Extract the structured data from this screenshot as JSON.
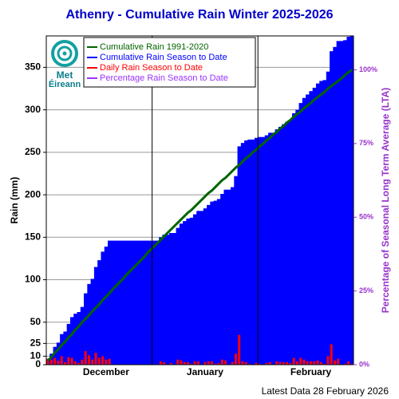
{
  "logo": {
    "line1": "Met",
    "line2": "Éireann"
  },
  "chart_data": {
    "type": "bar",
    "title": "Athenry - Cumulative Rain Winter 2025-2026",
    "ylabel": "Rain (mm)",
    "y2label": "Percentage  of Seasonal Long Term Average (LTA)",
    "note": "Latest Data 28 February 2026",
    "categories": [
      null,
      null,
      null,
      null,
      null,
      null,
      null,
      null,
      null,
      null,
      null,
      null,
      null,
      null,
      null,
      null,
      null,
      "December",
      null,
      null,
      null,
      null,
      null,
      null,
      null,
      null,
      null,
      null,
      null,
      null,
      null,
      null,
      null,
      null,
      null,
      null,
      null,
      null,
      null,
      null,
      null,
      null,
      null,
      null,
      null,
      null,
      "January",
      null,
      null,
      null,
      null,
      null,
      null,
      null,
      null,
      null,
      null,
      null,
      null,
      null,
      null,
      null,
      null,
      null,
      null,
      null,
      null,
      null,
      null,
      null,
      null,
      null,
      null,
      null,
      null,
      null,
      null,
      "February",
      null,
      null,
      null,
      null,
      null,
      null,
      null,
      null,
      null,
      null,
      null,
      null
    ],
    "series": [
      {
        "name": "Cumulative Rain 1991-2020",
        "type": "line",
        "color": "#006400",
        "values": [
          5,
          9,
          14,
          18,
          23,
          27,
          32,
          36,
          41,
          45,
          50,
          54,
          58,
          63,
          67,
          71,
          76,
          80,
          84,
          89,
          93,
          97,
          101,
          106,
          110,
          114,
          118,
          122,
          126,
          131,
          135,
          139,
          143,
          147,
          151,
          155,
          159,
          163,
          167,
          171,
          175,
          179,
          182,
          186,
          190,
          194,
          198,
          202,
          205,
          209,
          213,
          217,
          220,
          224,
          228,
          232,
          235,
          239,
          243,
          246,
          250,
          253,
          257,
          260,
          264,
          267,
          271,
          274,
          278,
          281,
          285,
          288,
          292,
          295,
          298,
          302,
          305,
          308,
          312,
          315,
          318,
          321,
          325,
          328,
          331,
          334,
          337,
          341,
          344,
          347
        ]
      },
      {
        "name": "Cumulative Rain Season to Date",
        "type": "bar",
        "color": "#0000ff",
        "values": [
          7,
          13,
          21,
          26,
          36,
          39,
          48,
          56,
          60,
          62,
          68,
          84,
          95,
          101,
          115,
          123,
          133,
          139,
          146,
          146,
          146,
          146,
          146,
          146,
          146,
          146,
          146,
          146,
          146,
          146,
          146,
          146,
          146,
          150,
          153,
          153,
          155,
          155,
          161,
          166,
          169,
          172,
          173,
          177,
          181,
          181,
          184,
          188,
          192,
          193,
          195,
          201,
          206,
          206,
          209,
          222,
          257,
          261,
          264,
          265,
          265,
          267,
          268,
          268,
          270,
          273,
          273,
          277,
          280,
          283,
          286,
          288,
          296,
          300,
          308,
          314,
          318,
          322,
          326,
          331,
          334,
          335,
          345,
          369,
          374,
          381,
          381,
          382,
          386,
          387
        ]
      },
      {
        "name": "Daily Rain Season to Date",
        "type": "bar",
        "color": "#ff0000",
        "values": [
          7,
          6,
          8,
          5,
          10,
          3,
          9,
          8,
          4,
          2,
          6,
          16,
          11,
          6,
          14,
          8,
          10,
          6,
          7,
          0,
          0,
          0,
          0,
          0,
          0,
          0,
          0,
          0,
          0,
          0,
          0,
          0,
          0,
          4,
          3,
          0,
          2,
          0,
          6,
          5,
          3,
          3,
          1,
          4,
          4,
          0,
          3,
          4,
          4,
          1,
          2,
          6,
          5,
          0,
          3,
          13,
          35,
          4,
          3,
          1,
          0,
          2,
          1,
          0,
          2,
          3,
          0,
          4,
          3,
          3,
          3,
          2,
          8,
          4,
          8,
          6,
          4,
          4,
          4,
          5,
          3,
          1,
          10,
          24,
          5,
          7,
          0,
          1,
          4,
          1
        ]
      },
      {
        "name": "Percentage Rain Season to Date",
        "type": "line",
        "color": "#9933ff",
        "axis": "y2"
      }
    ],
    "ylim": [
      0,
      387
    ],
    "yticks": [
      0,
      10,
      25,
      50,
      100,
      150,
      200,
      250,
      300,
      350
    ],
    "y2lim": [
      0,
      111.5
    ],
    "y2ticks": [
      {
        "value": 0,
        "label": "0%"
      },
      {
        "value": 25,
        "label": "25%"
      },
      {
        "value": 50,
        "label": "50%"
      },
      {
        "value": 75,
        "label": "75%"
      },
      {
        "value": 100,
        "label": "100%"
      }
    ],
    "y2color": "#9933cc",
    "grid": true,
    "legend": "upper left"
  }
}
